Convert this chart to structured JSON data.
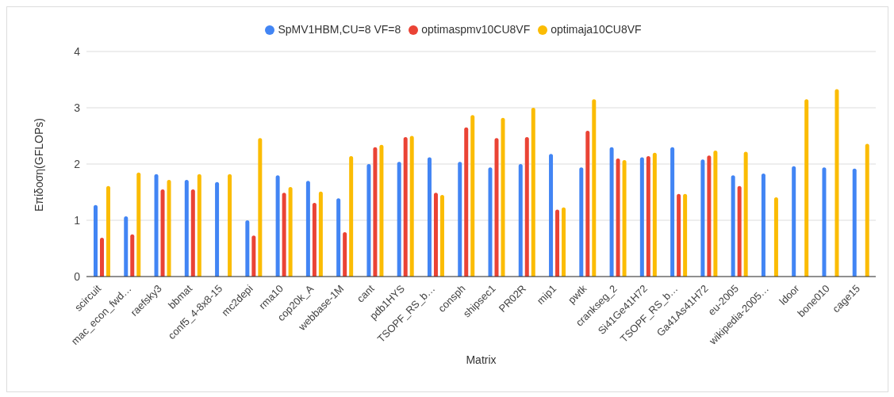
{
  "chart_data": {
    "type": "bar",
    "xlabel": "Matrix",
    "ylabel": "Επίδοση(GFLOPs)",
    "categories": [
      "scircuit",
      "mac_econ_fwd…",
      "raefsky3",
      "bbmat",
      "conf5_4-8x8-15",
      "mc2depi",
      "rma10",
      "cop20k_A",
      "webbase-1M",
      "cant",
      "pdb1HYS",
      "TSOPF_RS_b…",
      "consph",
      "shipsec1",
      "PR02R",
      "mip1",
      "pwtk",
      "crankseg_2",
      "Si41Ge41H72",
      "TSOPF_RS_b…",
      "Ga41As41H72",
      "eu-2005",
      "wikipedia-2005…",
      "ldoor",
      "bone010",
      "cage15"
    ],
    "series": [
      {
        "name": "SpMV1HBM,CU=8 VF=8",
        "color": "#4285f4",
        "values": [
          1.27,
          1.07,
          1.82,
          1.72,
          1.68,
          1.0,
          1.8,
          1.7,
          1.39,
          2.0,
          2.04,
          2.12,
          2.04,
          1.94,
          2.0,
          2.18,
          1.94,
          2.3,
          2.12,
          2.3,
          2.08,
          1.8,
          1.83,
          1.96,
          1.94,
          1.92
        ]
      },
      {
        "name": "optimaspmv10CU8VF",
        "color": "#ea4335",
        "values": [
          0.69,
          0.75,
          1.55,
          1.55,
          null,
          0.73,
          1.49,
          1.31,
          0.79,
          2.3,
          2.48,
          1.49,
          2.65,
          2.46,
          2.48,
          1.19,
          2.59,
          2.1,
          2.14,
          1.47,
          2.15,
          1.61,
          null,
          null,
          null,
          null
        ]
      },
      {
        "name": "optimaja10CU8VF",
        "color": "#fbbc04",
        "values": [
          1.61,
          1.85,
          1.72,
          1.82,
          1.82,
          2.46,
          1.59,
          1.51,
          2.14,
          2.34,
          2.5,
          1.45,
          2.87,
          2.82,
          3.0,
          1.23,
          3.15,
          2.07,
          2.2,
          1.47,
          2.24,
          2.22,
          1.41,
          3.15,
          3.33,
          2.36
        ]
      }
    ],
    "ylim": [
      0,
      4
    ],
    "yticks": [
      0,
      1,
      2,
      3,
      4
    ],
    "grid": "y",
    "legend": "top"
  }
}
